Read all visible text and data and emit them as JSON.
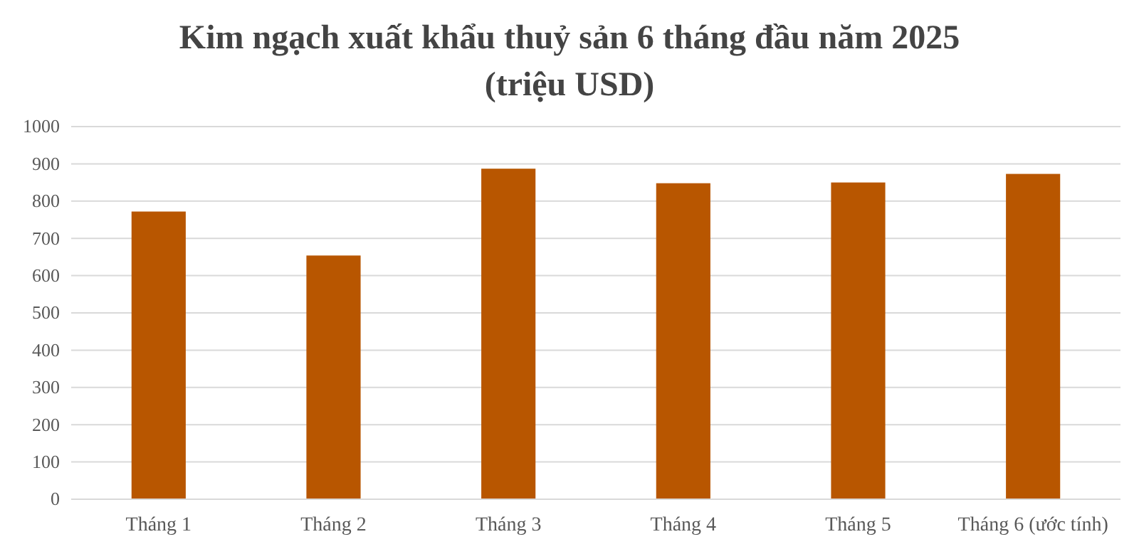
{
  "chart_data": {
    "type": "bar",
    "title": "Kim ngạch xuất khẩu thuỷ sản 6 tháng đầu năm 2025",
    "subtitle": "(triệu USD)",
    "categories": [
      "Tháng 1",
      "Tháng 2",
      "Tháng 3",
      "Tháng 4",
      "Tháng 5",
      "Tháng 6 (ước tính)"
    ],
    "values": [
      772,
      654,
      887,
      848,
      850,
      873
    ],
    "color": "#b85600",
    "ylim": [
      0,
      1000
    ],
    "yticks": [
      0,
      100,
      200,
      300,
      400,
      500,
      600,
      700,
      800,
      900,
      1000
    ],
    "grid": "y"
  }
}
